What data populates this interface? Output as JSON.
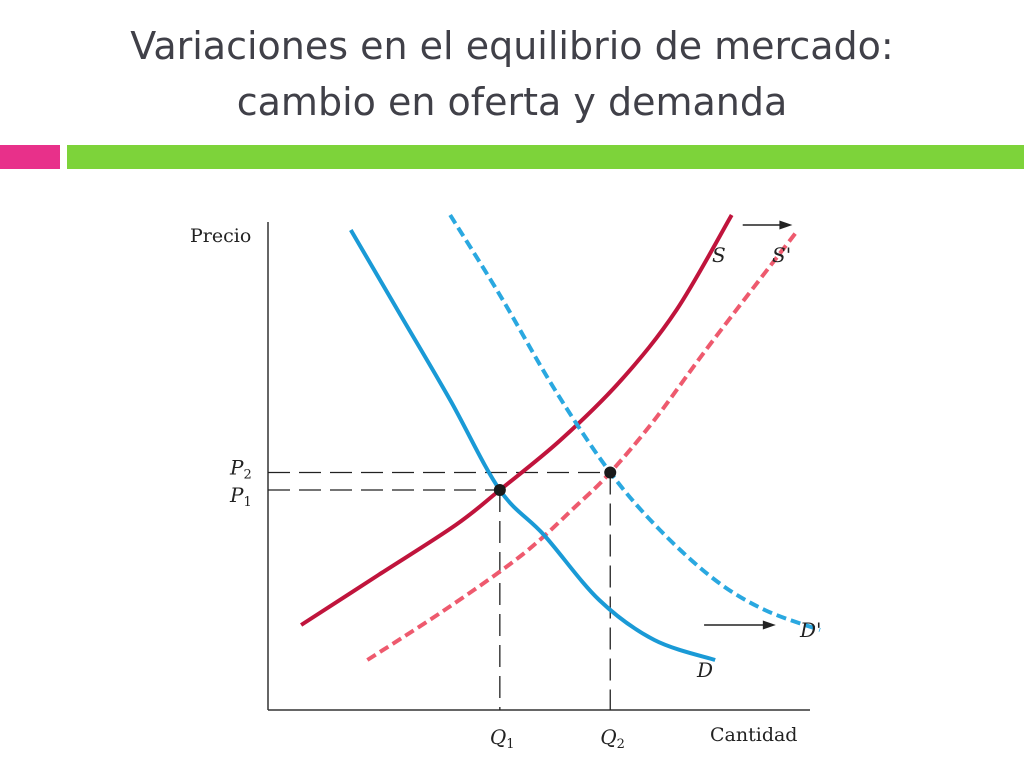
{
  "slide": {
    "title_line1": "Variaciones en el equilibrio de mercado:",
    "title_line2": "cambio en oferta y demanda"
  },
  "colors": {
    "title": "#404048",
    "accent_pink": "#e8308a",
    "accent_green": "#7dd33a",
    "supply": "#c0143c",
    "supply_shifted": "#ee5a6e",
    "demand": "#1a9ad6",
    "demand_shifted": "#2aa8e0"
  },
  "chart_data": {
    "type": "line",
    "xlabel": "Cantidad",
    "ylabel": "Precio",
    "xlim": [
      0,
      10
    ],
    "ylim": [
      0,
      10
    ],
    "grid": false,
    "x_ticks": [
      {
        "label": "Q",
        "sub": "1",
        "value": 4.2
      },
      {
        "label": "Q",
        "sub": "2",
        "value": 6.2
      }
    ],
    "y_ticks": [
      {
        "label": "P",
        "sub": "2",
        "value": 4.75
      },
      {
        "label": "P",
        "sub": "1",
        "value": 4.4
      }
    ],
    "series": [
      {
        "name": "S",
        "style": "solid",
        "color": "#c0143c",
        "x": [
          0.6,
          2.0,
          3.4,
          4.2,
          5.3,
          6.4,
          7.4,
          8.4
        ],
        "y": [
          1.7,
          2.7,
          3.7,
          4.4,
          5.4,
          6.6,
          8.0,
          9.9
        ]
      },
      {
        "name": "S'",
        "style": "dashed",
        "color": "#ee5a6e",
        "x": [
          1.8,
          3.2,
          4.6,
          5.6,
          6.2,
          7.0,
          8.0,
          9.6
        ],
        "y": [
          1.0,
          2.0,
          3.1,
          4.1,
          4.75,
          5.8,
          7.3,
          9.6
        ]
      },
      {
        "name": "D",
        "style": "solid",
        "color": "#1a9ad6",
        "x": [
          1.5,
          2.4,
          3.3,
          4.2,
          5.0,
          6.0,
          7.0,
          8.1
        ],
        "y": [
          9.6,
          7.9,
          6.2,
          4.4,
          3.5,
          2.2,
          1.4,
          1.0
        ]
      },
      {
        "name": "D'",
        "style": "dashed",
        "color": "#2aa8e0",
        "x": [
          3.3,
          4.2,
          5.2,
          6.2,
          7.1,
          8.1,
          9.0,
          10.0
        ],
        "y": [
          9.9,
          8.3,
          6.4,
          4.75,
          3.6,
          2.6,
          2.0,
          1.6
        ]
      }
    ],
    "equilibria": [
      {
        "x": 4.2,
        "y": 4.4
      },
      {
        "x": 6.2,
        "y": 4.75
      }
    ],
    "annotations": [
      {
        "type": "arrow",
        "from": [
          8.6,
          9.7
        ],
        "to": [
          9.5,
          9.7
        ]
      },
      {
        "type": "arrow",
        "from": [
          7.9,
          1.7
        ],
        "to": [
          9.2,
          1.7
        ]
      }
    ]
  }
}
